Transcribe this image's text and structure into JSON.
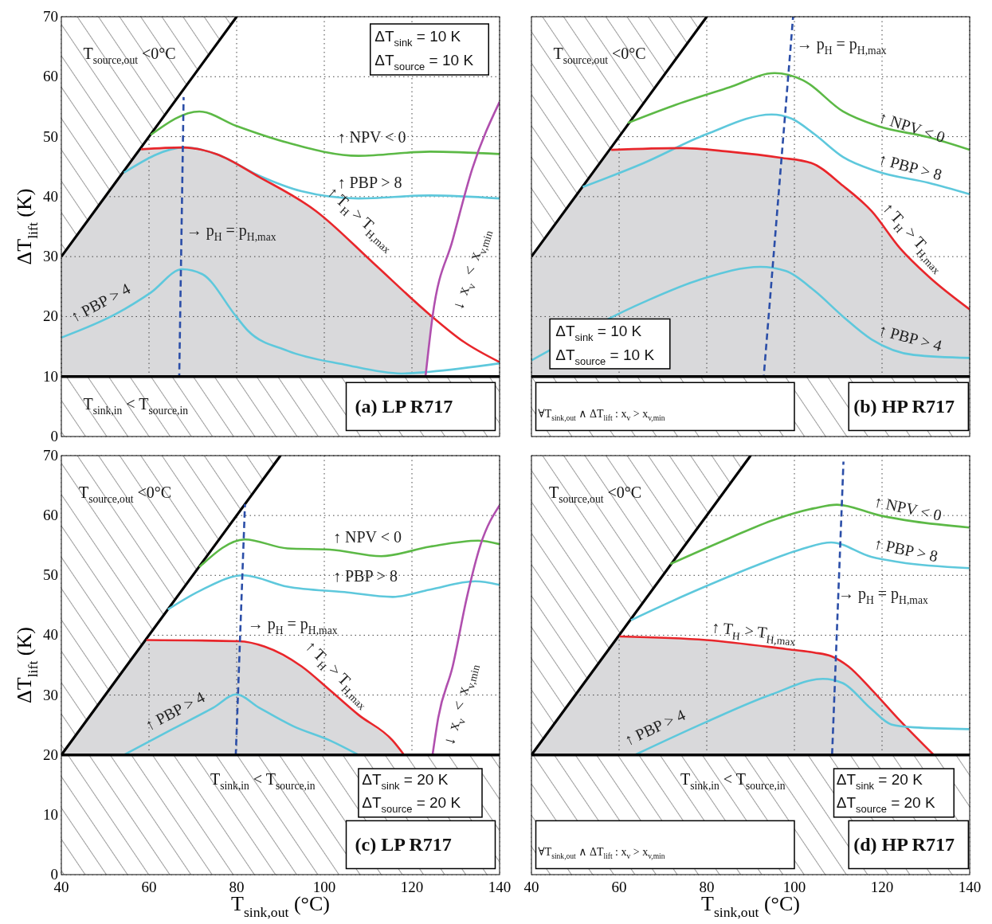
{
  "chart_data": [
    {
      "type": "line",
      "ylabel": "ΔT$_{lift}$ (K)",
      "xlim": [
        40,
        140
      ],
      "ylim": [
        0,
        70
      ],
      "xticks": [
        40,
        60,
        80,
        100,
        120,
        140
      ],
      "yticks": [
        0,
        10,
        20,
        30,
        40,
        50,
        60,
        70
      ],
      "grid": true,
      "tick_labels": "y",
      "ref_lines": [
        {
          "axis": "y",
          "value": 10,
          "color": "#000000"
        }
      ],
      "bands": [
        {
          "axis": "y",
          "from": 0,
          "to": 10,
          "label": "T$_{sink,in}$ < T$_{source,in}$"
        }
      ],
      "annotations": [
        "T$_{source,out}$ <0°C",
        "ΔT$_{sink}$ = 10 K",
        "ΔT$_{source}$ = 10 K",
        "(a) LP R717"
      ],
      "series": [
        {
          "type": "line",
          "color": "#000000",
          "x": [
            40,
            80
          ],
          "values": [
            30,
            70
          ]
        },
        {
          "type": "line",
          "name": "↑ NPV < 0",
          "color": "#5cb946",
          "x": [
            60.4,
            71.5,
            79.9,
            91.6,
            107.8,
            124.1,
            140
          ],
          "values": [
            50.3,
            54.2,
            51.8,
            49.0,
            46.8,
            47.5,
            47.1
          ]
        },
        {
          "type": "line",
          "name": "↑ PBP > 8",
          "color": "#5ec8dc",
          "x": [
            54.3,
            68.2,
            75.4,
            85.1,
            94.8,
            107.8,
            124.1,
            140
          ],
          "values": [
            44.0,
            48.2,
            47.1,
            43.5,
            40.9,
            39.7,
            40.2,
            39.7
          ]
        },
        {
          "type": "line",
          "name": "↑ T$_{H}$ > T$_{H,max}$",
          "color": "#e8262b",
          "x": [
            58.2,
            67.6,
            75.4,
            85.1,
            98.1,
            111.1,
            124.1,
            131.8,
            140
          ],
          "values": [
            47.9,
            48.2,
            47.1,
            43.3,
            37.6,
            29.0,
            20.3,
            15.8,
            12.4
          ]
        },
        {
          "type": "line",
          "name": "↑ PBP > 4",
          "color": "#5ec8dc",
          "x": [
            40,
            52.6,
            60.4,
            67.6,
            72.1,
            79.9,
            82.5,
            91.6,
            104.6,
            117.6,
            124.1,
            140
          ],
          "values": [
            16.5,
            20.5,
            24.0,
            27.9,
            27.1,
            20.0,
            17.7,
            14.3,
            12.0,
            10.5,
            10.8,
            12.2
          ]
        },
        {
          "type": "line",
          "name": "→ p$_{H}$ = p$_{H,max}$",
          "color": "#2b4ea8",
          "line_style": "dashed",
          "x": [
            66.9,
            67.9
          ],
          "values": [
            10,
            56.6
          ]
        },
        {
          "type": "line",
          "name": "↓ x$_{v}$ < x$_{v,min}$",
          "color": "#b04fae",
          "x": [
            123.1,
            124.7,
            129.3,
            133.8,
            140
          ],
          "values": [
            10,
            20.0,
            32.8,
            44.7,
            55.8
          ]
        }
      ]
    },
    {
      "type": "line",
      "xlim": [
        40,
        140
      ],
      "ylim": [
        0,
        70
      ],
      "xticks": [
        40,
        60,
        80,
        100,
        120,
        140
      ],
      "yticks": [
        0,
        10,
        20,
        30,
        40,
        50,
        60,
        70
      ],
      "grid": true,
      "tick_labels": false,
      "ref_lines": [
        {
          "axis": "y",
          "value": 10,
          "color": "#000000"
        }
      ],
      "bands": [
        {
          "axis": "y",
          "from": 0,
          "to": 10
        }
      ],
      "annotations": [
        "T$_{source,out}$ <0°C",
        "ΔT$_{sink}$ = 10 K",
        "ΔT$_{source}$ = 10 K",
        "∀T$_{sink,out}$ ∧ ΔT$_{lift}$ : x$_{v}$ > x$_{v,min}$",
        "(b) HP R717"
      ],
      "series": [
        {
          "type": "line",
          "color": "#000000",
          "x": [
            40,
            80
          ],
          "values": [
            30,
            70
          ]
        },
        {
          "type": "line",
          "name": "↑ NPV < 0",
          "color": "#5cb946",
          "x": [
            62.0,
            72.1,
            85.1,
            95.5,
            102.0,
            111.1,
            118.9,
            130.6,
            140
          ],
          "values": [
            52.3,
            55.1,
            58.2,
            60.6,
            59.4,
            54.2,
            51.8,
            49.9,
            47.8
          ]
        },
        {
          "type": "line",
          "name": "↑ PBP > 8",
          "color": "#5ec8dc",
          "x": [
            51.7,
            65.6,
            79.9,
            94.8,
            99.4,
            104.6,
            111.1,
            118.9,
            130.6,
            140
          ],
          "values": [
            41.6,
            45.6,
            50.4,
            53.7,
            53.0,
            50.4,
            46.6,
            44.2,
            42.3,
            40.4
          ]
        },
        {
          "type": "line",
          "name": "↑ T$_{H}$ > T$_{H,max}$",
          "color": "#e8262b",
          "x": [
            58.2,
            74.1,
            85.1,
            96.8,
            103.9,
            111.1,
            117.6,
            124.1,
            130.6,
            140
          ],
          "values": [
            47.8,
            48.1,
            47.5,
            46.5,
            45.6,
            41.8,
            37.6,
            31.4,
            26.7,
            21.2
          ]
        },
        {
          "type": "line",
          "name": "↑ PBP > 4",
          "color": "#5ec8dc",
          "x": [
            40,
            65.6,
            78.6,
            92.2,
            98.1,
            104.6,
            111.1,
            117.6,
            127.3,
            140
          ],
          "values": [
            12.7,
            22.4,
            26.2,
            28.3,
            27.6,
            24.3,
            20.0,
            16.2,
            13.6,
            13.1
          ]
        },
        {
          "type": "line",
          "name": "→ p$_{H}$ = p$_{H,max}$",
          "color": "#2b4ea8",
          "line_style": "dashed",
          "x": [
            93.0,
            99.7
          ],
          "values": [
            10,
            70
          ]
        }
      ]
    },
    {
      "type": "line",
      "xlabel": "T$_{sink,out}$ (°C)",
      "ylabel": "ΔT$_{lift}$ (K)",
      "xlim": [
        40,
        140
      ],
      "ylim": [
        0,
        70
      ],
      "xticks": [
        40,
        60,
        80,
        100,
        120,
        140
      ],
      "yticks": [
        0,
        10,
        20,
        30,
        40,
        50,
        60,
        70
      ],
      "grid": true,
      "ref_lines": [
        {
          "axis": "y",
          "value": 20,
          "color": "#000000"
        }
      ],
      "bands": [
        {
          "axis": "y",
          "from": 0,
          "to": 20,
          "label": "T$_{sink,in}$ < T$_{source,in}$"
        }
      ],
      "annotations": [
        "T$_{source,out}$ <0°C",
        "ΔT$_{sink}$ = 20 K",
        "ΔT$_{source}$ = 20 K",
        "(c) LP R717"
      ],
      "series": [
        {
          "type": "line",
          "color": "#000000",
          "x": [
            40,
            90
          ],
          "values": [
            20,
            70
          ]
        },
        {
          "type": "line",
          "name": "↑ NPV < 0",
          "color": "#5cb946",
          "x": [
            71.5,
            81.9,
            91.6,
            101.3,
            113.0,
            124.1,
            135.1,
            140
          ],
          "values": [
            51.4,
            56.0,
            54.5,
            54.3,
            53.2,
            54.8,
            55.8,
            55.2
          ]
        },
        {
          "type": "line",
          "name": "↑ PBP > 8",
          "color": "#5ec8dc",
          "x": [
            64.3,
            72.1,
            81.5,
            91.6,
            104.6,
            115.6,
            124.1,
            134.4,
            140
          ],
          "values": [
            44.3,
            47.6,
            50.0,
            48.1,
            47.2,
            46.4,
            47.6,
            49.0,
            48.4
          ]
        },
        {
          "type": "line",
          "name": "↑ T$_{H}$ > T$_{H,max}$",
          "color": "#e8262b",
          "x": [
            59.4,
            80.5,
            86.4,
            94.8,
            101.3,
            107.8,
            115.6,
            118.2
          ],
          "values": [
            39.2,
            39.0,
            38.1,
            34.8,
            30.8,
            26.7,
            22.4,
            20
          ]
        },
        {
          "type": "line",
          "name": "↑ PBP > 4",
          "color": "#5ec8dc",
          "x": [
            54.3,
            65.6,
            74.7,
            79.9,
            85.1,
            92.9,
            101.3,
            107.8
          ],
          "values": [
            20,
            24.4,
            27.9,
            30.1,
            27.9,
            24.8,
            22.4,
            20
          ]
        },
        {
          "type": "line",
          "name": "→ p$_{H}$ = p$_{H,max}$",
          "color": "#2b4ea8",
          "line_style": "dashed",
          "x": [
            79.8,
            81.9
          ],
          "values": [
            20,
            61.9
          ]
        },
        {
          "type": "line",
          "name": "↓ x$_{v}$ < x$_{v,min}$",
          "color": "#b04fae",
          "x": [
            124.7,
            126.0,
            129.3,
            132.5,
            135.7,
            140
          ],
          "values": [
            20,
            26.2,
            34.8,
            46.2,
            55.2,
            61.7
          ]
        }
      ]
    },
    {
      "type": "line",
      "xlabel": "T$_{sink,out}$ (°C)",
      "xlim": [
        40,
        140
      ],
      "ylim": [
        0,
        70
      ],
      "xticks": [
        40,
        60,
        80,
        100,
        120,
        140
      ],
      "yticks": [
        0,
        10,
        20,
        30,
        40,
        50,
        60,
        70
      ],
      "grid": true,
      "tick_labels": "x",
      "ref_lines": [
        {
          "axis": "y",
          "value": 20,
          "color": "#000000"
        }
      ],
      "bands": [
        {
          "axis": "y",
          "from": 0,
          "to": 20,
          "label": "T$_{sink,in}$ < T$_{source,in}$"
        }
      ],
      "annotations": [
        "T$_{source,out}$ <0°C",
        "ΔT$_{sink}$ = 20 K",
        "ΔT$_{source}$ = 20 K",
        "∀T$_{sink,out}$ ∧ ΔT$_{lift}$ : x$_{v}$ > x$_{v,min}$",
        "(d) HP R717"
      ],
      "series": [
        {
          "type": "line",
          "color": "#000000",
          "x": [
            40,
            90
          ],
          "values": [
            20,
            70
          ]
        },
        {
          "type": "line",
          "name": "↑ NPV < 0",
          "color": "#5cb946",
          "x": [
            71.7,
            85.1,
            95.4,
            104.5,
            109.7,
            119.5,
            127.3,
            139.9
          ],
          "values": [
            51.9,
            56.2,
            59.3,
            61.2,
            61.8,
            60.0,
            59.0,
            58.0
          ]
        },
        {
          "type": "line",
          "name": "↑ PBP > 8",
          "color": "#5ec8dc",
          "x": [
            62.7,
            72.1,
            79.9,
            91.5,
            101.3,
            108.4,
            117.5,
            124.0,
            139.9
          ],
          "values": [
            42.5,
            45.7,
            48.2,
            51.7,
            54.3,
            55.5,
            53.1,
            52.2,
            51.2
          ]
        },
        {
          "type": "line",
          "name": "↑ T$_{H}$ > T$_{H,max}$",
          "color": "#e8262b",
          "x": [
            60.1,
            79.9,
            98.0,
            104.5,
            108.4,
            112.3,
            117.5,
            124.0,
            131.8
          ],
          "values": [
            39.8,
            39.2,
            37.7,
            37.1,
            36.5,
            34.8,
            31.0,
            25.8,
            20
          ]
        },
        {
          "type": "line",
          "name": "↑ PBP > 4",
          "color": "#5ec8dc",
          "x": [
            63.6,
            79.9,
            94.8,
            106.5,
            111.0,
            117.5,
            122.1,
            127.3,
            139.9
          ],
          "values": [
            20,
            25.5,
            30.1,
            32.7,
            32.0,
            27.7,
            25.1,
            24.6,
            24.3
          ]
        },
        {
          "type": "line",
          "name": "→ p$_{H}$ = p$_{H,max}$",
          "color": "#2b4ea8",
          "line_style": "dashed",
          "x": [
            108.6,
            111.2
          ],
          "values": [
            20,
            69.0
          ]
        }
      ]
    }
  ]
}
